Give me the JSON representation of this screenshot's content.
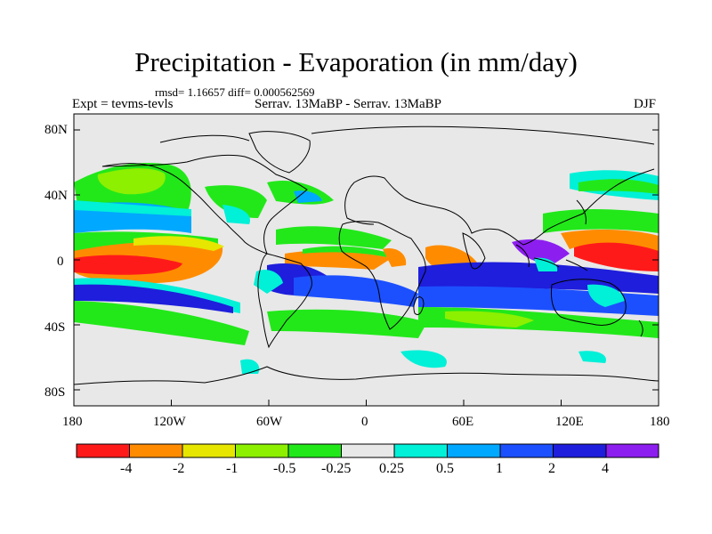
{
  "title": "Precipitation - Evaporation (in mm/day)",
  "stats": "rmsd= 1.16657 diff= 0.000562569",
  "expt_label": "Expt = tevms-tevls",
  "center_label": "Serrav.  13MaBP - Serrav.  13MaBP",
  "season": "DJF",
  "y_ticks": [
    "80N",
    "40N",
    "0",
    "40S",
    "80S"
  ],
  "x_ticks": [
    "180",
    "120W",
    "60W",
    "0",
    "60E",
    "120E",
    "180"
  ],
  "colorbar": {
    "labels": [
      "-4",
      "-2",
      "-1",
      "-0.5",
      "-0.25",
      "0.25",
      "0.5",
      "1",
      "2",
      "4"
    ],
    "colors": [
      "#ff1a1a",
      "#ff8c00",
      "#e6e600",
      "#8cf000",
      "#22e81a",
      "#e8e8e8",
      "#00f0d8",
      "#00a8ff",
      "#1c50ff",
      "#1e1edc",
      "#8c1ef0"
    ]
  },
  "map": {
    "lon_range": [
      -180,
      180
    ],
    "lat_range": [
      -90,
      90
    ],
    "background_color": "#e8e8e8",
    "coastline_color": "#000000"
  }
}
